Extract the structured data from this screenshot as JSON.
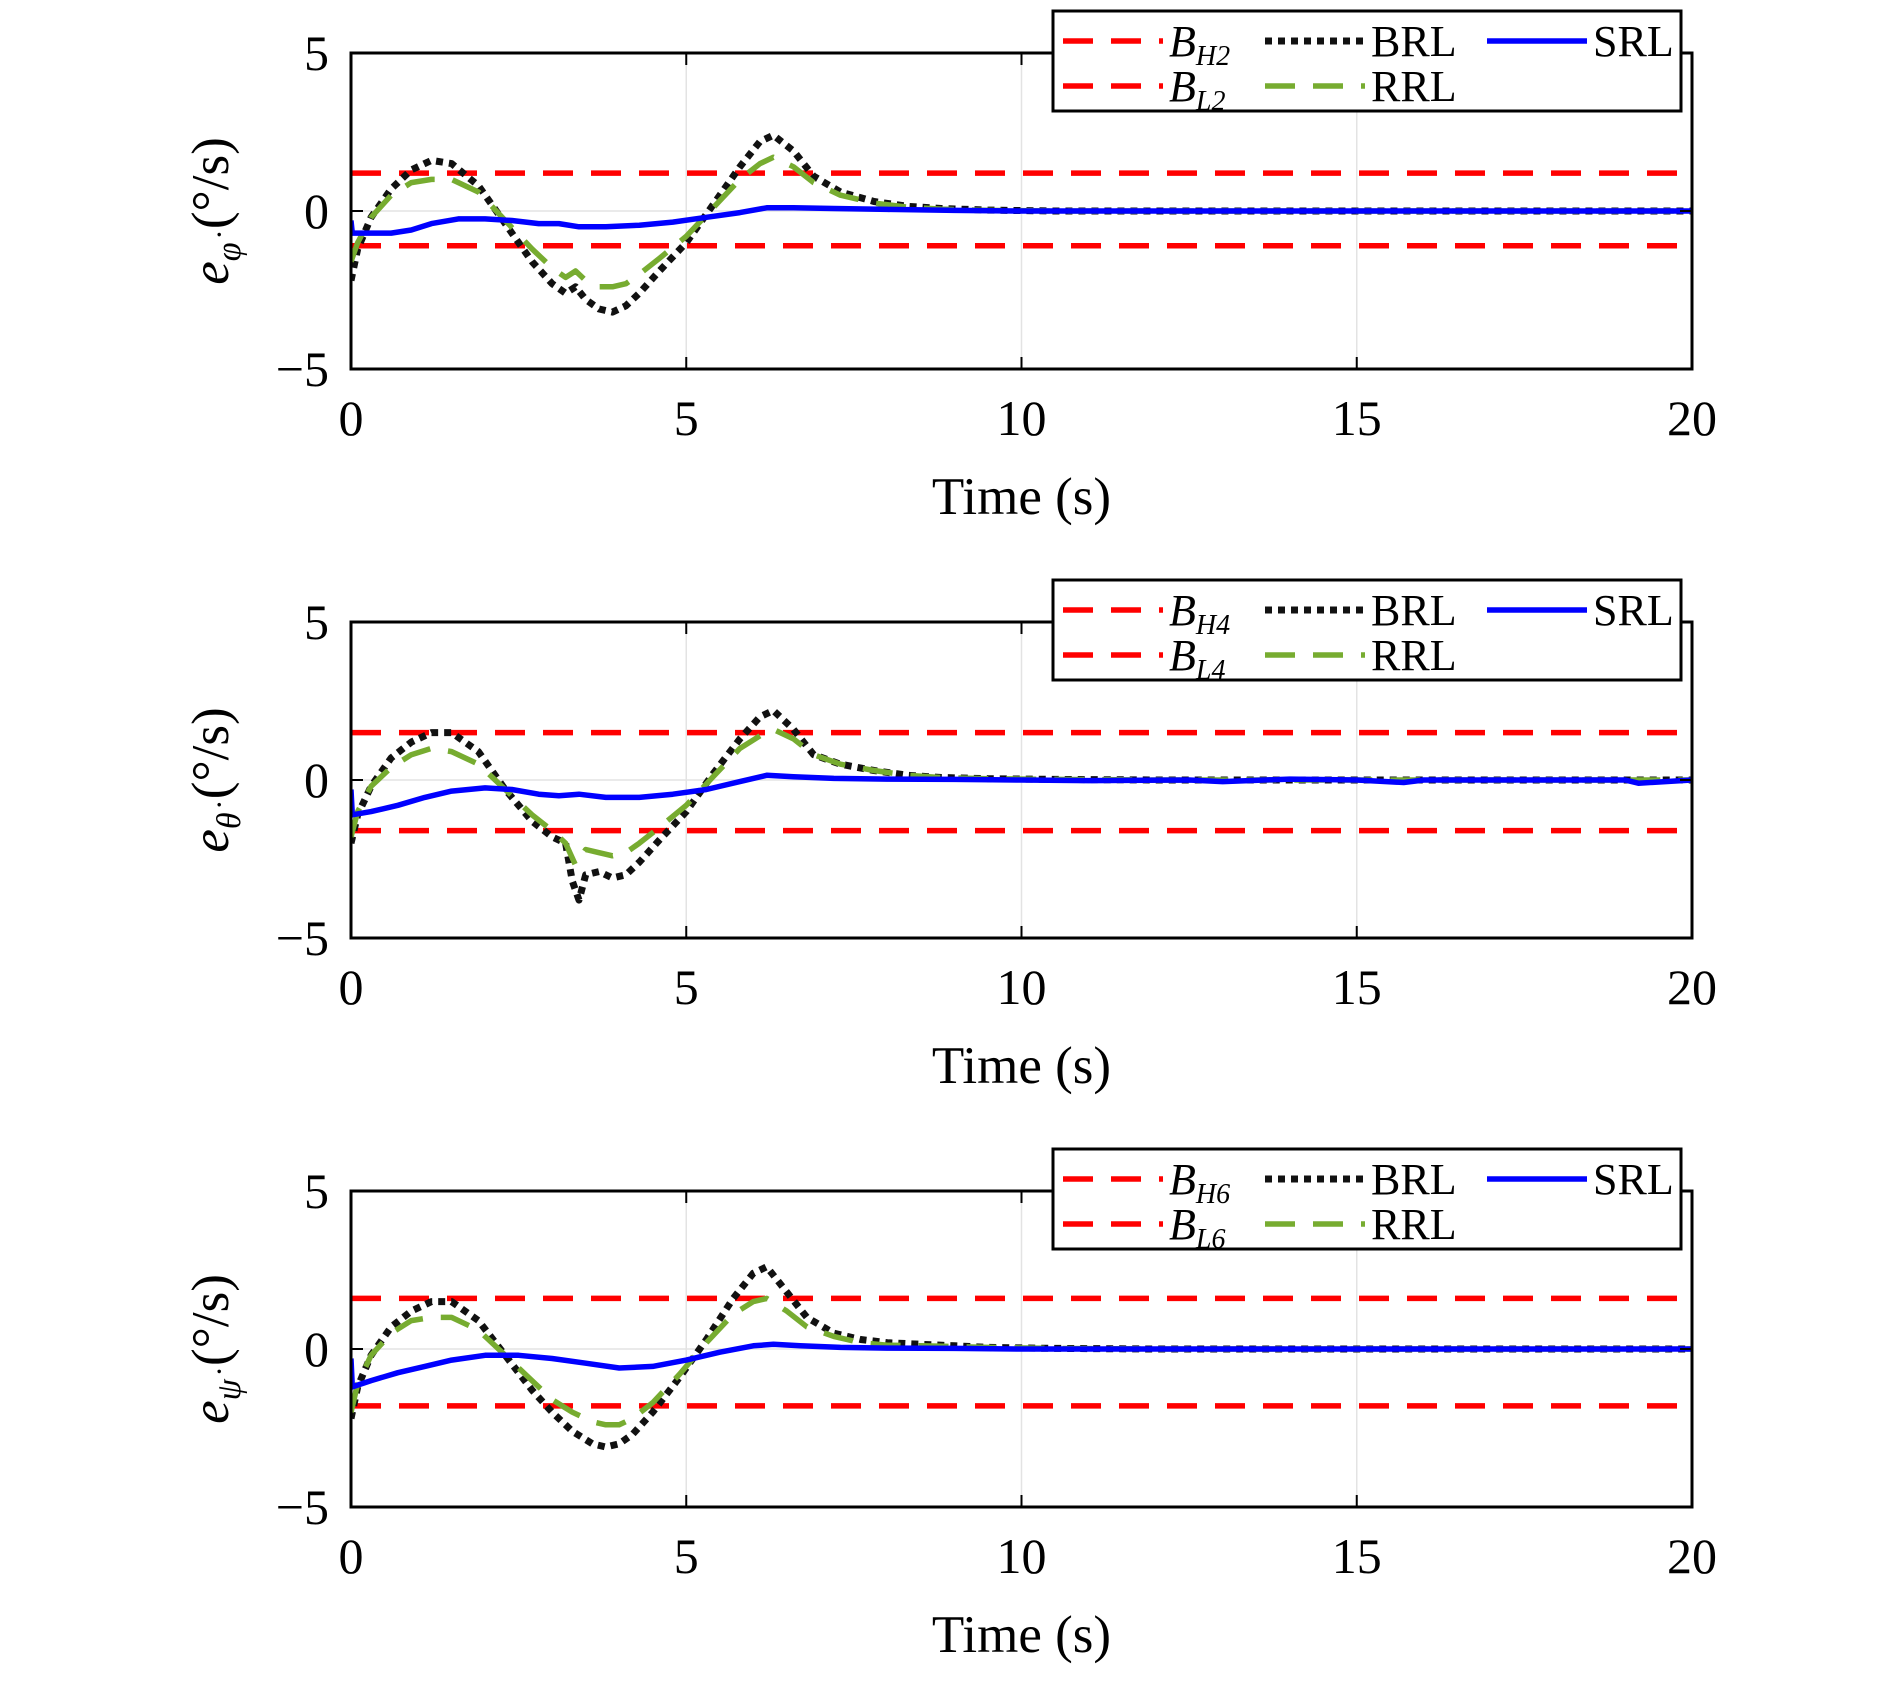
{
  "chart_data": [
    {
      "type": "line",
      "panel": 1,
      "xlabel": "Time (s)",
      "ylabel": {
        "sym": "e",
        "sub": "φ̇",
        "unit": " (°/s)"
      },
      "xlim": [
        0,
        20
      ],
      "ylim": [
        -5,
        5
      ],
      "xticks": [
        0,
        5,
        10,
        15,
        20
      ],
      "yticks": [
        5,
        0,
        -5
      ],
      "ytick_labels": [
        "5",
        "0",
        "−5"
      ],
      "grid": true,
      "legend_position": "top-right",
      "series": [
        {
          "key": "BH",
          "name": "B",
          "sub": "H2",
          "style": "dashed",
          "color": "#ff0000",
          "x": [
            0,
            20
          ],
          "y": [
            1.2,
            1.2
          ]
        },
        {
          "key": "BL",
          "name": "B",
          "sub": "L2",
          "style": "dashed",
          "color": "#ff0000",
          "x": [
            0,
            20
          ],
          "y": [
            -1.1,
            -1.1
          ]
        },
        {
          "key": "BRL",
          "name": "BRL",
          "style": "dotted",
          "color": "#111111",
          "x": [
            0,
            0.1,
            0.3,
            0.6,
            0.9,
            1.2,
            1.5,
            1.9,
            2.3,
            2.7,
            3.0,
            3.2,
            3.35,
            3.5,
            3.7,
            3.9,
            4.1,
            4.3,
            4.6,
            5.0,
            5.4,
            5.8,
            6.1,
            6.3,
            6.6,
            6.9,
            7.3,
            7.8,
            8.3,
            8.8,
            9.5,
            10.5,
            12,
            14,
            16,
            18,
            20
          ],
          "y": [
            -2.2,
            -1.2,
            -0.2,
            0.7,
            1.3,
            1.6,
            1.5,
            0.8,
            -0.4,
            -1.6,
            -2.3,
            -2.6,
            -2.4,
            -2.8,
            -3.1,
            -3.2,
            -3.0,
            -2.6,
            -1.9,
            -1.0,
            0.2,
            1.4,
            2.2,
            2.4,
            1.9,
            1.1,
            0.6,
            0.3,
            0.15,
            0.08,
            0.03,
            0,
            0,
            0,
            0,
            0,
            0
          ]
        },
        {
          "key": "RRL",
          "name": "RRL",
          "style": "dashed",
          "color": "#77ac30",
          "x": [
            0,
            0.1,
            0.3,
            0.6,
            0.9,
            1.2,
            1.5,
            1.9,
            2.3,
            2.7,
            3.0,
            3.2,
            3.35,
            3.5,
            3.7,
            3.9,
            4.1,
            4.3,
            4.6,
            5.0,
            5.4,
            5.8,
            6.1,
            6.3,
            6.6,
            6.9,
            7.3,
            7.8,
            8.3,
            8.8,
            9.5,
            10.5,
            12,
            14,
            16,
            18,
            20
          ],
          "y": [
            -1.6,
            -1.0,
            -0.2,
            0.5,
            0.9,
            1.0,
            1.0,
            0.6,
            -0.3,
            -1.2,
            -1.8,
            -2.1,
            -1.9,
            -2.2,
            -2.4,
            -2.4,
            -2.3,
            -2.0,
            -1.5,
            -0.8,
            0.1,
            1.0,
            1.5,
            1.7,
            1.4,
            0.9,
            0.5,
            0.25,
            0.12,
            0.06,
            0.02,
            0,
            0,
            0,
            0,
            0,
            0
          ]
        },
        {
          "key": "SRL",
          "name": "SRL",
          "style": "solid",
          "color": "#0000ff",
          "x": [
            0,
            0.02,
            0.3,
            0.6,
            0.9,
            1.2,
            1.6,
            2.0,
            2.4,
            2.8,
            3.1,
            3.4,
            3.8,
            4.3,
            4.8,
            5.3,
            5.8,
            6.2,
            6.6,
            7.2,
            8,
            9,
            10,
            12,
            14,
            16,
            18,
            20
          ],
          "y": [
            -0.3,
            -0.7,
            -0.7,
            -0.7,
            -0.6,
            -0.4,
            -0.25,
            -0.25,
            -0.3,
            -0.4,
            -0.4,
            -0.5,
            -0.5,
            -0.45,
            -0.35,
            -0.2,
            -0.05,
            0.1,
            0.1,
            0.08,
            0.05,
            0.02,
            0,
            0,
            0,
            0,
            0,
            0
          ]
        }
      ]
    },
    {
      "type": "line",
      "panel": 2,
      "xlabel": "Time (s)",
      "ylabel": {
        "sym": "e",
        "sub": "θ̇",
        "unit": " (°/s)"
      },
      "xlim": [
        0,
        20
      ],
      "ylim": [
        -5,
        5
      ],
      "xticks": [
        0,
        5,
        10,
        15,
        20
      ],
      "yticks": [
        5,
        0,
        -5
      ],
      "ytick_labels": [
        "5",
        "0",
        "−5"
      ],
      "grid": true,
      "legend_position": "top-right",
      "series": [
        {
          "key": "BH",
          "name": "B",
          "sub": "H4",
          "style": "dashed",
          "color": "#ff0000",
          "x": [
            0,
            20
          ],
          "y": [
            1.5,
            1.5
          ]
        },
        {
          "key": "BL",
          "name": "B",
          "sub": "L4",
          "style": "dashed",
          "color": "#ff0000",
          "x": [
            0,
            20
          ],
          "y": [
            -1.6,
            -1.6
          ]
        },
        {
          "key": "BRL",
          "name": "BRL",
          "style": "dotted",
          "color": "#111111",
          "x": [
            0,
            0.1,
            0.3,
            0.6,
            0.9,
            1.2,
            1.5,
            1.9,
            2.3,
            2.7,
            3.0,
            3.2,
            3.3,
            3.4,
            3.5,
            3.7,
            3.9,
            4.1,
            4.3,
            4.6,
            5.0,
            5.4,
            5.8,
            6.1,
            6.3,
            6.6,
            6.9,
            7.3,
            7.8,
            8.3,
            8.8,
            9.5,
            10.5,
            12,
            14,
            16,
            18,
            20
          ],
          "y": [
            -2.0,
            -1.1,
            -0.2,
            0.7,
            1.2,
            1.5,
            1.5,
            0.9,
            -0.3,
            -1.3,
            -1.8,
            -2.0,
            -3.2,
            -3.8,
            -3.0,
            -2.9,
            -3.1,
            -3.0,
            -2.6,
            -1.9,
            -1.0,
            0.2,
            1.3,
            2.0,
            2.2,
            1.6,
            0.8,
            0.5,
            0.3,
            0.15,
            0.08,
            0.04,
            0.02,
            0,
            0,
            0,
            0,
            0
          ]
        },
        {
          "key": "RRL",
          "name": "RRL",
          "style": "dashed",
          "color": "#77ac30",
          "x": [
            0,
            0.1,
            0.3,
            0.6,
            0.9,
            1.2,
            1.5,
            1.9,
            2.3,
            2.7,
            3.0,
            3.2,
            3.35,
            3.5,
            3.7,
            3.9,
            4.1,
            4.3,
            4.6,
            5.0,
            5.4,
            5.8,
            6.1,
            6.3,
            6.6,
            6.9,
            7.3,
            7.8,
            8.3,
            8.8,
            9.5,
            10.5,
            12,
            14,
            16,
            18,
            20
          ],
          "y": [
            -1.8,
            -1.0,
            -0.2,
            0.4,
            0.8,
            1.0,
            0.9,
            0.5,
            -0.3,
            -1.1,
            -1.6,
            -2.0,
            -2.7,
            -2.2,
            -2.3,
            -2.4,
            -2.3,
            -2.0,
            -1.5,
            -0.8,
            0.1,
            1.0,
            1.4,
            1.6,
            1.3,
            0.8,
            0.5,
            0.3,
            0.15,
            0.08,
            0.04,
            0.02,
            0,
            0,
            0,
            0,
            0
          ]
        },
        {
          "key": "SRL",
          "name": "SRL",
          "style": "solid",
          "color": "#0000ff",
          "x": [
            0,
            0.02,
            0.3,
            0.7,
            1.1,
            1.5,
            2.0,
            2.4,
            2.8,
            3.1,
            3.4,
            3.8,
            4.3,
            4.8,
            5.3,
            5.8,
            6.2,
            6.6,
            7.2,
            8,
            9,
            10,
            11,
            12.5,
            13,
            14,
            15,
            15.7,
            16,
            17,
            18,
            19,
            19.2,
            20
          ],
          "y": [
            -0.3,
            -1.1,
            -1.0,
            -0.8,
            -0.55,
            -0.35,
            -0.25,
            -0.3,
            -0.45,
            -0.5,
            -0.45,
            -0.55,
            -0.55,
            -0.45,
            -0.3,
            -0.05,
            0.15,
            0.1,
            0.05,
            0.03,
            0.02,
            0,
            -0.02,
            0,
            -0.05,
            0.03,
            0,
            -0.08,
            0,
            0,
            0,
            0,
            -0.1,
            0
          ]
        }
      ]
    },
    {
      "type": "line",
      "panel": 3,
      "xlabel": "Time (s)",
      "ylabel": {
        "sym": "e",
        "sub": "ψ̇",
        "unit": " (°/s)"
      },
      "xlim": [
        0,
        20
      ],
      "ylim": [
        -5,
        5
      ],
      "xticks": [
        0,
        5,
        10,
        15,
        20
      ],
      "yticks": [
        5,
        0,
        -5
      ],
      "ytick_labels": [
        "5",
        "0",
        "−5"
      ],
      "grid": true,
      "legend_position": "top-right",
      "series": [
        {
          "key": "BH",
          "name": "B",
          "sub": "H6",
          "style": "dashed",
          "color": "#ff0000",
          "x": [
            0,
            20
          ],
          "y": [
            1.6,
            1.6
          ]
        },
        {
          "key": "BL",
          "name": "B",
          "sub": "L6",
          "style": "dashed",
          "color": "#ff0000",
          "x": [
            0,
            20
          ],
          "y": [
            -1.8,
            -1.8
          ]
        },
        {
          "key": "BRL",
          "name": "BRL",
          "style": "dotted",
          "color": "#111111",
          "x": [
            0,
            0.1,
            0.3,
            0.6,
            0.9,
            1.2,
            1.5,
            1.9,
            2.3,
            2.7,
            3.0,
            3.3,
            3.6,
            3.8,
            4.0,
            4.2,
            4.5,
            4.9,
            5.3,
            5.7,
            6.0,
            6.2,
            6.5,
            6.8,
            7.2,
            7.6,
            8.0,
            8.5,
            9.0,
            9.5,
            10.5,
            12,
            14,
            16,
            18,
            20
          ],
          "y": [
            -2.2,
            -1.2,
            -0.2,
            0.7,
            1.2,
            1.5,
            1.5,
            0.9,
            -0.2,
            -1.3,
            -2.0,
            -2.6,
            -3.0,
            -3.1,
            -3.0,
            -2.7,
            -2.0,
            -0.9,
            0.3,
            1.6,
            2.4,
            2.6,
            1.8,
            1.0,
            0.5,
            0.3,
            0.2,
            0.15,
            0.1,
            0.05,
            0.02,
            0,
            0,
            0,
            0,
            0
          ]
        },
        {
          "key": "RRL",
          "name": "RRL",
          "style": "dashed",
          "color": "#77ac30",
          "x": [
            0,
            0.1,
            0.3,
            0.6,
            0.9,
            1.2,
            1.5,
            1.9,
            2.3,
            2.7,
            3.0,
            3.3,
            3.6,
            3.8,
            4.0,
            4.2,
            4.5,
            4.9,
            5.3,
            5.7,
            6.0,
            6.2,
            6.5,
            6.8,
            7.2,
            7.6,
            8.0,
            8.5,
            9.0,
            9.5,
            10.5,
            12,
            14,
            16,
            18,
            20
          ],
          "y": [
            -2.0,
            -1.1,
            -0.2,
            0.5,
            0.9,
            1.0,
            1.0,
            0.6,
            -0.2,
            -1.0,
            -1.6,
            -2.0,
            -2.3,
            -2.4,
            -2.4,
            -2.2,
            -1.7,
            -0.8,
            0.2,
            1.1,
            1.5,
            1.6,
            1.2,
            0.7,
            0.4,
            0.2,
            0.12,
            0.1,
            0.08,
            0.05,
            0.02,
            0,
            0,
            0,
            0,
            0
          ]
        },
        {
          "key": "SRL",
          "name": "SRL",
          "style": "solid",
          "color": "#0000ff",
          "x": [
            0,
            0.02,
            0.3,
            0.7,
            1.1,
            1.5,
            2.0,
            2.5,
            3.0,
            3.5,
            4.0,
            4.5,
            5.0,
            5.5,
            6.0,
            6.3,
            6.7,
            7.3,
            8,
            9,
            10,
            12,
            14,
            16,
            18,
            20
          ],
          "y": [
            -0.3,
            -1.2,
            -1.0,
            -0.75,
            -0.55,
            -0.35,
            -0.2,
            -0.2,
            -0.3,
            -0.45,
            -0.6,
            -0.55,
            -0.35,
            -0.1,
            0.1,
            0.15,
            0.1,
            0.05,
            0.03,
            0.02,
            0,
            0,
            0,
            0,
            0,
            0
          ]
        }
      ]
    }
  ]
}
